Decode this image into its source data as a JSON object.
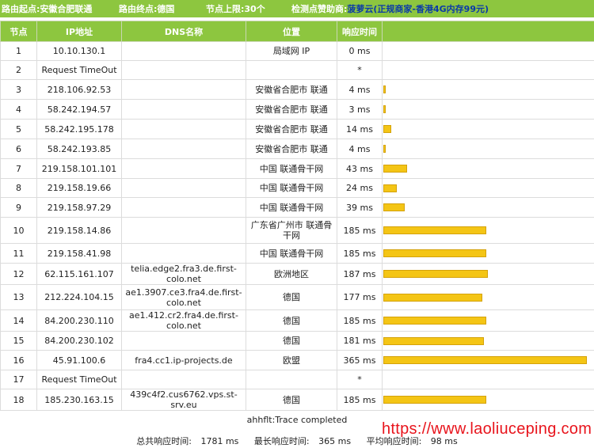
{
  "header": {
    "origin_label": "路由起点:",
    "origin_value": "安徽合肥联通",
    "dest_label": "路由终点:",
    "dest_value": "德国",
    "limit_label": "节点上限:",
    "limit_value": "30个",
    "sponsor_label": "检测点赞助商:",
    "sponsor_name": "菠萝云",
    "sponsor_ad": "(正规商家-香港4G内存99元)"
  },
  "columns": [
    "节点",
    "IP地址",
    "DNS名称",
    "位置",
    "响应时间",
    ""
  ],
  "max_ms": 365,
  "hops": [
    {
      "n": "1",
      "ip": "10.10.130.1",
      "dns": "",
      "loc": "局域网 IP",
      "time": "0 ms",
      "ms": 0
    },
    {
      "n": "2",
      "ip": "Request TimeOut",
      "dns": "",
      "loc": "",
      "time": "*",
      "ms": 0
    },
    {
      "n": "3",
      "ip": "218.106.92.53",
      "dns": "",
      "loc": "安徽省合肥市 联通",
      "time": "4 ms",
      "ms": 4
    },
    {
      "n": "4",
      "ip": "58.242.194.57",
      "dns": "",
      "loc": "安徽省合肥市 联通",
      "time": "3 ms",
      "ms": 3
    },
    {
      "n": "5",
      "ip": "58.242.195.178",
      "dns": "",
      "loc": "安徽省合肥市 联通",
      "time": "14 ms",
      "ms": 14
    },
    {
      "n": "6",
      "ip": "58.242.193.85",
      "dns": "",
      "loc": "安徽省合肥市 联通",
      "time": "4 ms",
      "ms": 4
    },
    {
      "n": "7",
      "ip": "219.158.101.101",
      "dns": "",
      "loc": "中国 联通骨干网",
      "time": "43 ms",
      "ms": 43
    },
    {
      "n": "8",
      "ip": "219.158.19.66",
      "dns": "",
      "loc": "中国 联通骨干网",
      "time": "24 ms",
      "ms": 24
    },
    {
      "n": "9",
      "ip": "219.158.97.29",
      "dns": "",
      "loc": "中国 联通骨干网",
      "time": "39 ms",
      "ms": 39
    },
    {
      "n": "10",
      "ip": "219.158.14.86",
      "dns": "",
      "loc": "广东省广州市 联通骨干网",
      "time": "185 ms",
      "ms": 185
    },
    {
      "n": "11",
      "ip": "219.158.41.98",
      "dns": "",
      "loc": "中国 联通骨干网",
      "time": "185 ms",
      "ms": 185
    },
    {
      "n": "12",
      "ip": "62.115.161.107",
      "dns": "telia.edge2.fra3.de.first-colo.net",
      "loc": "欧洲地区",
      "time": "187 ms",
      "ms": 187
    },
    {
      "n": "13",
      "ip": "212.224.104.15",
      "dns": "ae1.3907.ce3.fra4.de.first-colo.net",
      "loc": "德国",
      "time": "177 ms",
      "ms": 177
    },
    {
      "n": "14",
      "ip": "84.200.230.110",
      "dns": "ae1.412.cr2.fra4.de.first-colo.net",
      "loc": "德国",
      "time": "185 ms",
      "ms": 185
    },
    {
      "n": "15",
      "ip": "84.200.230.102",
      "dns": "",
      "loc": "德国",
      "time": "181 ms",
      "ms": 181
    },
    {
      "n": "16",
      "ip": "45.91.100.6",
      "dns": "fra4.cc1.ip-projects.de",
      "loc": "欧盟",
      "time": "365 ms",
      "ms": 365
    },
    {
      "n": "17",
      "ip": "Request TimeOut",
      "dns": "",
      "loc": "",
      "time": "*",
      "ms": 0
    },
    {
      "n": "18",
      "ip": "185.230.163.15",
      "dns": "439c4f2.cus6762.vps.st-srv.eu",
      "loc": "德国",
      "time": "185 ms",
      "ms": 185
    }
  ],
  "footer": {
    "status": "ahhflt:Trace completed",
    "total_label": "总共响应时间:",
    "total_value": "1781 ms",
    "max_label": "最长响应时间:",
    "max_value": "365 ms",
    "avg_label": "平均响应时间:",
    "avg_value": "98 ms"
  },
  "watermark": "https://www.laoliuceping.com",
  "colors": {
    "header_green": "#8dc63f",
    "bar_yellow": "#f4c515",
    "sponsor_blue": "#0a3aa8",
    "watermark_red": "#e8141c"
  }
}
